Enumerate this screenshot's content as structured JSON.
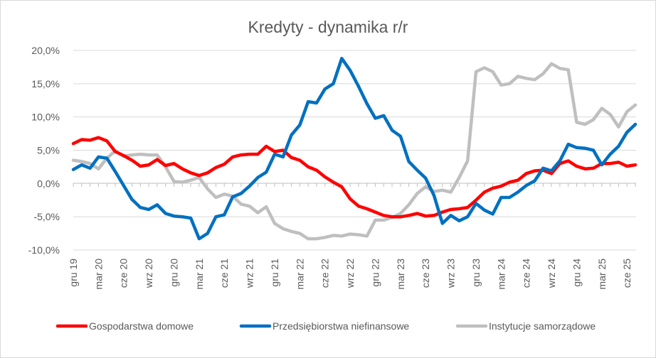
{
  "chart_data": {
    "type": "line",
    "title": "Kredyty - dynamika r/r",
    "xlabel": "",
    "ylabel": "",
    "ylim": [
      -10,
      20
    ],
    "y_ticks": [
      -10,
      -5,
      0,
      5,
      10,
      15,
      20
    ],
    "y_tick_labels": [
      "-10,0%",
      "-5,0%",
      "0,0%",
      "5,0%",
      "10,0%",
      "15,0%",
      "20,0%"
    ],
    "x_tick_labels": [
      "gru 19",
      "mar 20",
      "cze 20",
      "wrz 20",
      "gru 20",
      "mar 21",
      "cze 21",
      "wrz 21",
      "gru 21",
      "mar 22",
      "cze 22",
      "wrz 22",
      "gru 22",
      "mar 23",
      "cze 23",
      "wrz 23",
      "gru 23",
      "mar 24",
      "cze 24",
      "wrz 24",
      "gru 24",
      "mar 25",
      "cze 25"
    ],
    "x_tick_step_months": 3,
    "grid": "horizontal",
    "legend_position": "bottom",
    "series": [
      {
        "name": "Gospodarstwa domowe",
        "color": "#ff0000",
        "values": [
          6.0,
          6.6,
          6.5,
          6.9,
          6.4,
          4.8,
          4.2,
          3.5,
          2.6,
          2.8,
          3.6,
          2.7,
          3.0,
          2.2,
          1.6,
          1.2,
          1.6,
          2.4,
          2.9,
          4.0,
          4.3,
          4.4,
          4.4,
          5.6,
          4.8,
          5.0,
          3.9,
          3.5,
          2.5,
          2.0,
          1.0,
          0.2,
          -0.5,
          -2.3,
          -3.4,
          -3.8,
          -4.3,
          -4.8,
          -5.0,
          -5.0,
          -4.8,
          -4.5,
          -4.9,
          -4.8,
          -4.3,
          -3.9,
          -3.8,
          -3.6,
          -2.5,
          -1.3,
          -0.7,
          -0.4,
          0.2,
          0.5,
          1.5,
          1.9,
          2.0,
          1.5,
          3.0,
          3.4,
          2.6,
          2.2,
          2.3,
          3.0,
          3.0,
          3.2,
          2.6,
          2.8
        ]
      },
      {
        "name": "Przedsiębiorstwa niefinansowe",
        "color": "#0070c0",
        "values": [
          2.1,
          2.8,
          2.3,
          4.0,
          3.8,
          1.8,
          -0.3,
          -2.4,
          -3.6,
          -3.9,
          -3.2,
          -4.5,
          -4.9,
          -5.0,
          -5.2,
          -8.3,
          -7.5,
          -5.0,
          -4.7,
          -2.0,
          -1.5,
          -0.4,
          0.9,
          1.7,
          4.4,
          4.0,
          7.3,
          8.8,
          12.3,
          12.1,
          14.2,
          15.0,
          18.8,
          17.0,
          14.6,
          12.0,
          9.8,
          10.2,
          8.0,
          7.1,
          3.3,
          2.0,
          0.8,
          -1.8,
          -6.0,
          -4.8,
          -5.6,
          -5.0,
          -3.0,
          -4.0,
          -4.6,
          -2.1,
          -2.1,
          -1.3,
          -0.3,
          0.4,
          2.3,
          1.9,
          3.4,
          5.9,
          5.4,
          5.3,
          5.0,
          2.8,
          4.4,
          5.6,
          7.7,
          8.9
        ]
      },
      {
        "name": "Instytucje samorządowe",
        "color": "#bfbfbf",
        "values": [
          3.5,
          3.3,
          3.0,
          2.2,
          3.8,
          4.9,
          4.1,
          4.3,
          4.4,
          4.3,
          4.3,
          2.5,
          0.3,
          0.2,
          0.5,
          0.9,
          -0.8,
          -2.1,
          -1.6,
          -1.9,
          -3.1,
          -3.4,
          -4.4,
          -3.5,
          -6.0,
          -6.8,
          -7.2,
          -7.5,
          -8.3,
          -8.3,
          -8.1,
          -7.8,
          -7.9,
          -7.6,
          -7.7,
          -7.9,
          -5.5,
          -5.5,
          -5.1,
          -4.5,
          -3.2,
          -1.5,
          -0.5,
          -1.2,
          -1.0,
          -1.3,
          0.9,
          3.4,
          16.8,
          17.4,
          16.8,
          14.8,
          15.0,
          16.1,
          15.8,
          15.6,
          16.5,
          18.0,
          17.3,
          17.1,
          9.2,
          8.9,
          9.6,
          11.3,
          10.4,
          8.5,
          10.8,
          11.8
        ]
      }
    ]
  }
}
